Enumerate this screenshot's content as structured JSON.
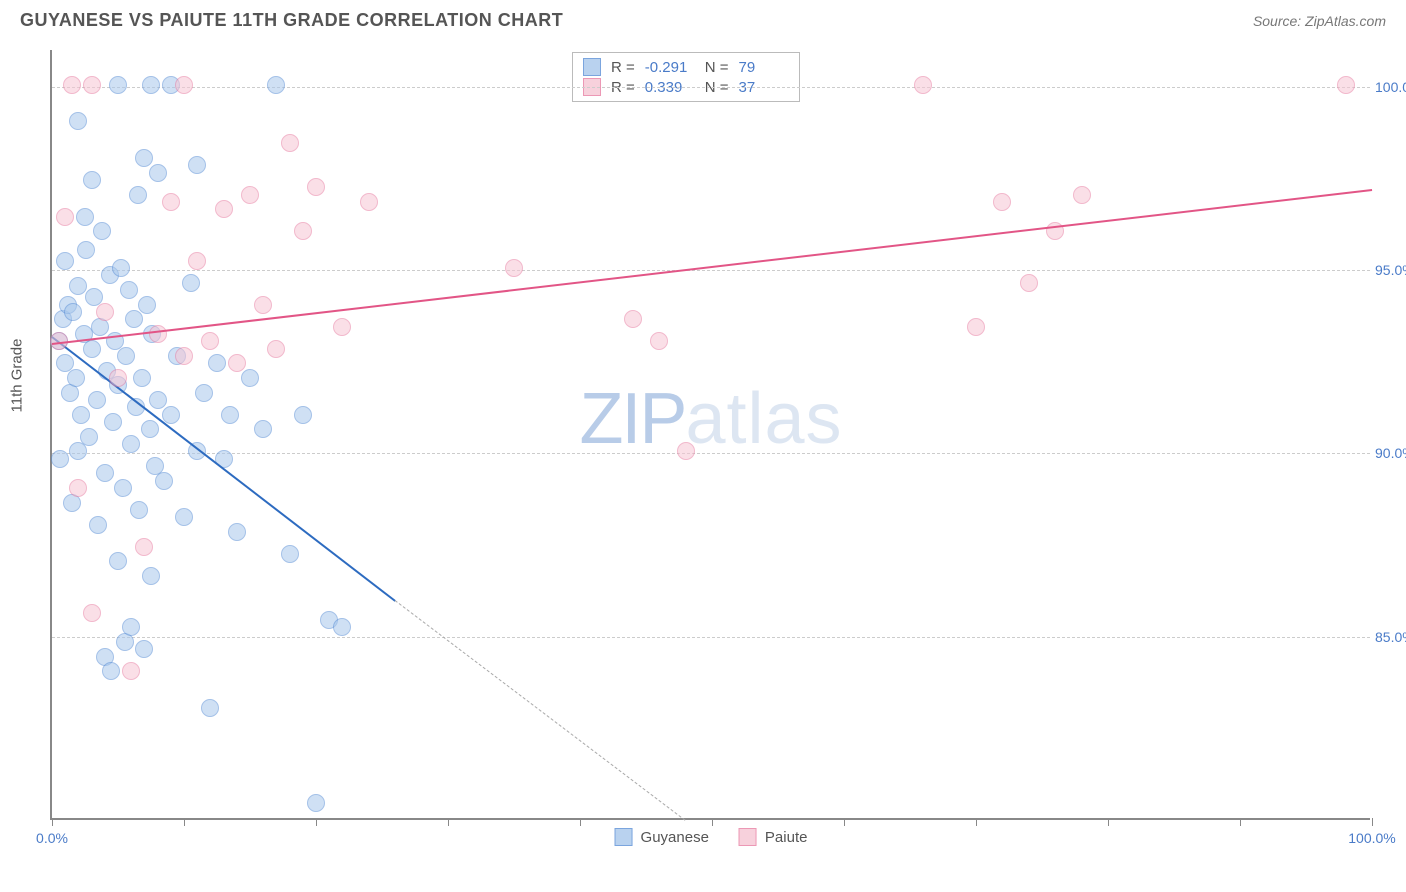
{
  "title": "GUYANESE VS PAIUTE 11TH GRADE CORRELATION CHART",
  "source": "Source: ZipAtlas.com",
  "watermark": {
    "part1": "ZIP",
    "part2": "atlas"
  },
  "chart": {
    "type": "scatter",
    "ylabel": "11th Grade",
    "background_color": "#ffffff",
    "grid_color": "#cccccc",
    "axis_color": "#888888",
    "label_color": "#4a7bc8",
    "xlim": [
      0,
      100
    ],
    "ylim": [
      80,
      101
    ],
    "xtick_positions": [
      0,
      10,
      20,
      30,
      40,
      50,
      60,
      70,
      80,
      90,
      100
    ],
    "xtick_labels": {
      "0": "0.0%",
      "100": "100.0%"
    },
    "ytick_positions": [
      85,
      90,
      95,
      100
    ],
    "ytick_labels": {
      "85": "85.0%",
      "90": "90.0%",
      "95": "95.0%",
      "100": "100.0%"
    },
    "series": [
      {
        "name": "Guyanese",
        "fill_color": "#a8c8ec",
        "stroke_color": "#5b8fd6",
        "line_color": "#2d6bc0",
        "fill_opacity": 0.55,
        "marker_radius": 9,
        "R": "-0.291",
        "N": "79",
        "trend": {
          "x1": 0,
          "y1": 93.2,
          "x2": 26,
          "y2": 86.0
        },
        "trend_dash": {
          "x1": 26,
          "y1": 86.0,
          "x2": 48,
          "y2": 80.0
        },
        "points": [
          [
            0.5,
            93.0
          ],
          [
            0.8,
            93.6
          ],
          [
            1.0,
            92.4
          ],
          [
            1.2,
            94.0
          ],
          [
            1.4,
            91.6
          ],
          [
            1.6,
            93.8
          ],
          [
            1.8,
            92.0
          ],
          [
            2.0,
            94.5
          ],
          [
            2.2,
            91.0
          ],
          [
            2.4,
            93.2
          ],
          [
            2.6,
            95.5
          ],
          [
            2.8,
            90.4
          ],
          [
            3.0,
            92.8
          ],
          [
            3.2,
            94.2
          ],
          [
            3.4,
            91.4
          ],
          [
            3.6,
            93.4
          ],
          [
            3.8,
            96.0
          ],
          [
            4.0,
            89.4
          ],
          [
            4.2,
            92.2
          ],
          [
            4.4,
            94.8
          ],
          [
            4.6,
            90.8
          ],
          [
            4.8,
            93.0
          ],
          [
            5.0,
            91.8
          ],
          [
            5.2,
            95.0
          ],
          [
            5.4,
            89.0
          ],
          [
            5.6,
            92.6
          ],
          [
            5.8,
            94.4
          ],
          [
            6.0,
            90.2
          ],
          [
            6.2,
            93.6
          ],
          [
            6.4,
            91.2
          ],
          [
            6.6,
            88.4
          ],
          [
            6.8,
            92.0
          ],
          [
            7.0,
            98.0
          ],
          [
            7.2,
            94.0
          ],
          [
            7.4,
            90.6
          ],
          [
            7.6,
            93.2
          ],
          [
            7.8,
            89.6
          ],
          [
            8.0,
            91.4
          ],
          [
            0.6,
            89.8
          ],
          [
            1.0,
            95.2
          ],
          [
            1.5,
            88.6
          ],
          [
            2.0,
            90.0
          ],
          [
            2.5,
            96.4
          ],
          [
            3.0,
            97.4
          ],
          [
            3.5,
            88.0
          ],
          [
            4.0,
            84.4
          ],
          [
            4.5,
            84.0
          ],
          [
            5.0,
            87.0
          ],
          [
            5.5,
            84.8
          ],
          [
            6.0,
            85.2
          ],
          [
            6.5,
            97.0
          ],
          [
            7.0,
            84.6
          ],
          [
            7.5,
            86.6
          ],
          [
            8.0,
            97.6
          ],
          [
            8.5,
            89.2
          ],
          [
            9.0,
            91.0
          ],
          [
            9.5,
            92.6
          ],
          [
            10.0,
            88.2
          ],
          [
            10.5,
            94.6
          ],
          [
            11.0,
            90.0
          ],
          [
            11.5,
            91.6
          ],
          [
            12.0,
            83.0
          ],
          [
            12.5,
            92.4
          ],
          [
            13.0,
            89.8
          ],
          [
            13.5,
            91.0
          ],
          [
            14.0,
            87.8
          ],
          [
            15.0,
            92.0
          ],
          [
            16.0,
            90.6
          ],
          [
            17.0,
            100.0
          ],
          [
            18.0,
            87.2
          ],
          [
            19.0,
            91.0
          ],
          [
            7.5,
            100.0
          ],
          [
            9.0,
            100.0
          ],
          [
            11.0,
            97.8
          ],
          [
            21.0,
            85.4
          ],
          [
            22.0,
            85.2
          ],
          [
            20.0,
            80.4
          ],
          [
            5.0,
            100.0
          ],
          [
            2.0,
            99.0
          ]
        ]
      },
      {
        "name": "Paiute",
        "fill_color": "#f6c6d4",
        "stroke_color": "#e87fa3",
        "line_color": "#e25586",
        "fill_opacity": 0.55,
        "marker_radius": 9,
        "R": "0.339",
        "N": "37",
        "trend": {
          "x1": 0,
          "y1": 93.0,
          "x2": 100,
          "y2": 97.2
        },
        "points": [
          [
            1.0,
            96.4
          ],
          [
            2.0,
            89.0
          ],
          [
            3.0,
            85.6
          ],
          [
            4.0,
            93.8
          ],
          [
            5.0,
            92.0
          ],
          [
            6.0,
            84.0
          ],
          [
            7.0,
            87.4
          ],
          [
            8.0,
            93.2
          ],
          [
            9.0,
            96.8
          ],
          [
            10.0,
            92.6
          ],
          [
            11.0,
            95.2
          ],
          [
            12.0,
            93.0
          ],
          [
            13.0,
            96.6
          ],
          [
            14.0,
            92.4
          ],
          [
            15.0,
            97.0
          ],
          [
            16.0,
            94.0
          ],
          [
            10.0,
            100.0
          ],
          [
            17.0,
            92.8
          ],
          [
            18.0,
            98.4
          ],
          [
            19.0,
            96.0
          ],
          [
            20.0,
            97.2
          ],
          [
            22.0,
            93.4
          ],
          [
            24.0,
            96.8
          ],
          [
            35.0,
            95.0
          ],
          [
            44.0,
            93.6
          ],
          [
            46.0,
            93.0
          ],
          [
            48.0,
            90.0
          ],
          [
            66.0,
            100.0
          ],
          [
            70.0,
            93.4
          ],
          [
            72.0,
            96.8
          ],
          [
            74.0,
            94.6
          ],
          [
            76.0,
            96.0
          ],
          [
            78.0,
            97.0
          ],
          [
            98.0,
            100.0
          ],
          [
            1.5,
            100.0
          ],
          [
            3.0,
            100.0
          ],
          [
            0.5,
            93.0
          ]
        ]
      }
    ],
    "legend_bottom": [
      {
        "label": "Guyanese",
        "fill": "#a8c8ec",
        "stroke": "#5b8fd6"
      },
      {
        "label": "Paiute",
        "fill": "#f6c6d4",
        "stroke": "#e87fa3"
      }
    ]
  }
}
